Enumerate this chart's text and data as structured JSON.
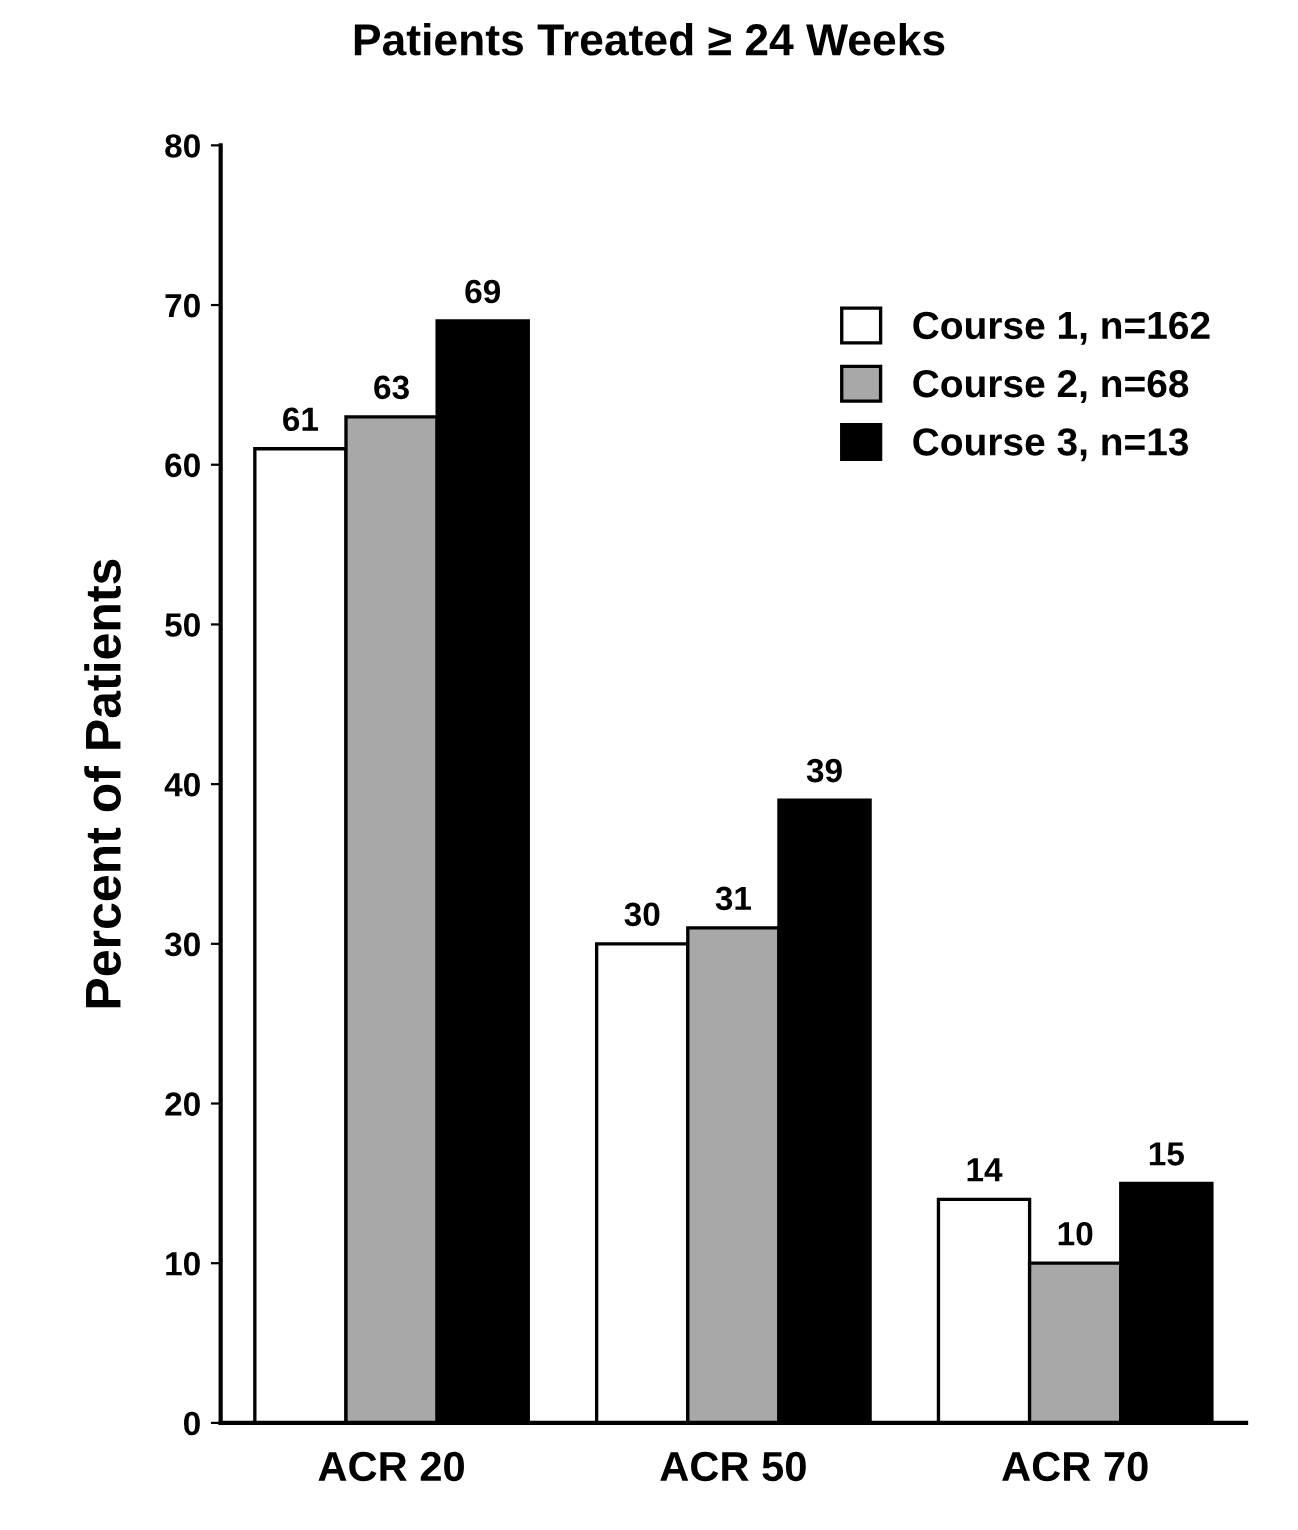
{
  "chart_data": {
    "type": "bar",
    "title": "Patients Treated ≥ 24 Weeks",
    "ylabel": "Percent of Patients",
    "categories": [
      "ACR 20",
      "ACR 50",
      "ACR 70"
    ],
    "series": [
      {
        "name": "Course 1, n=162",
        "color": "#ffffff",
        "values": [
          61,
          30,
          14
        ]
      },
      {
        "name": "Course 2, n=68",
        "color": "#a8a8a8",
        "values": [
          63,
          31,
          10
        ]
      },
      {
        "name": "Course 3, n=13",
        "color": "#000000",
        "values": [
          69,
          39,
          15
        ]
      }
    ],
    "ylim": [
      0,
      80
    ],
    "yticks": [
      0,
      10,
      20,
      30,
      40,
      50,
      60,
      70,
      80
    ],
    "data_labels": true,
    "legend": "top right",
    "grid": false
  }
}
